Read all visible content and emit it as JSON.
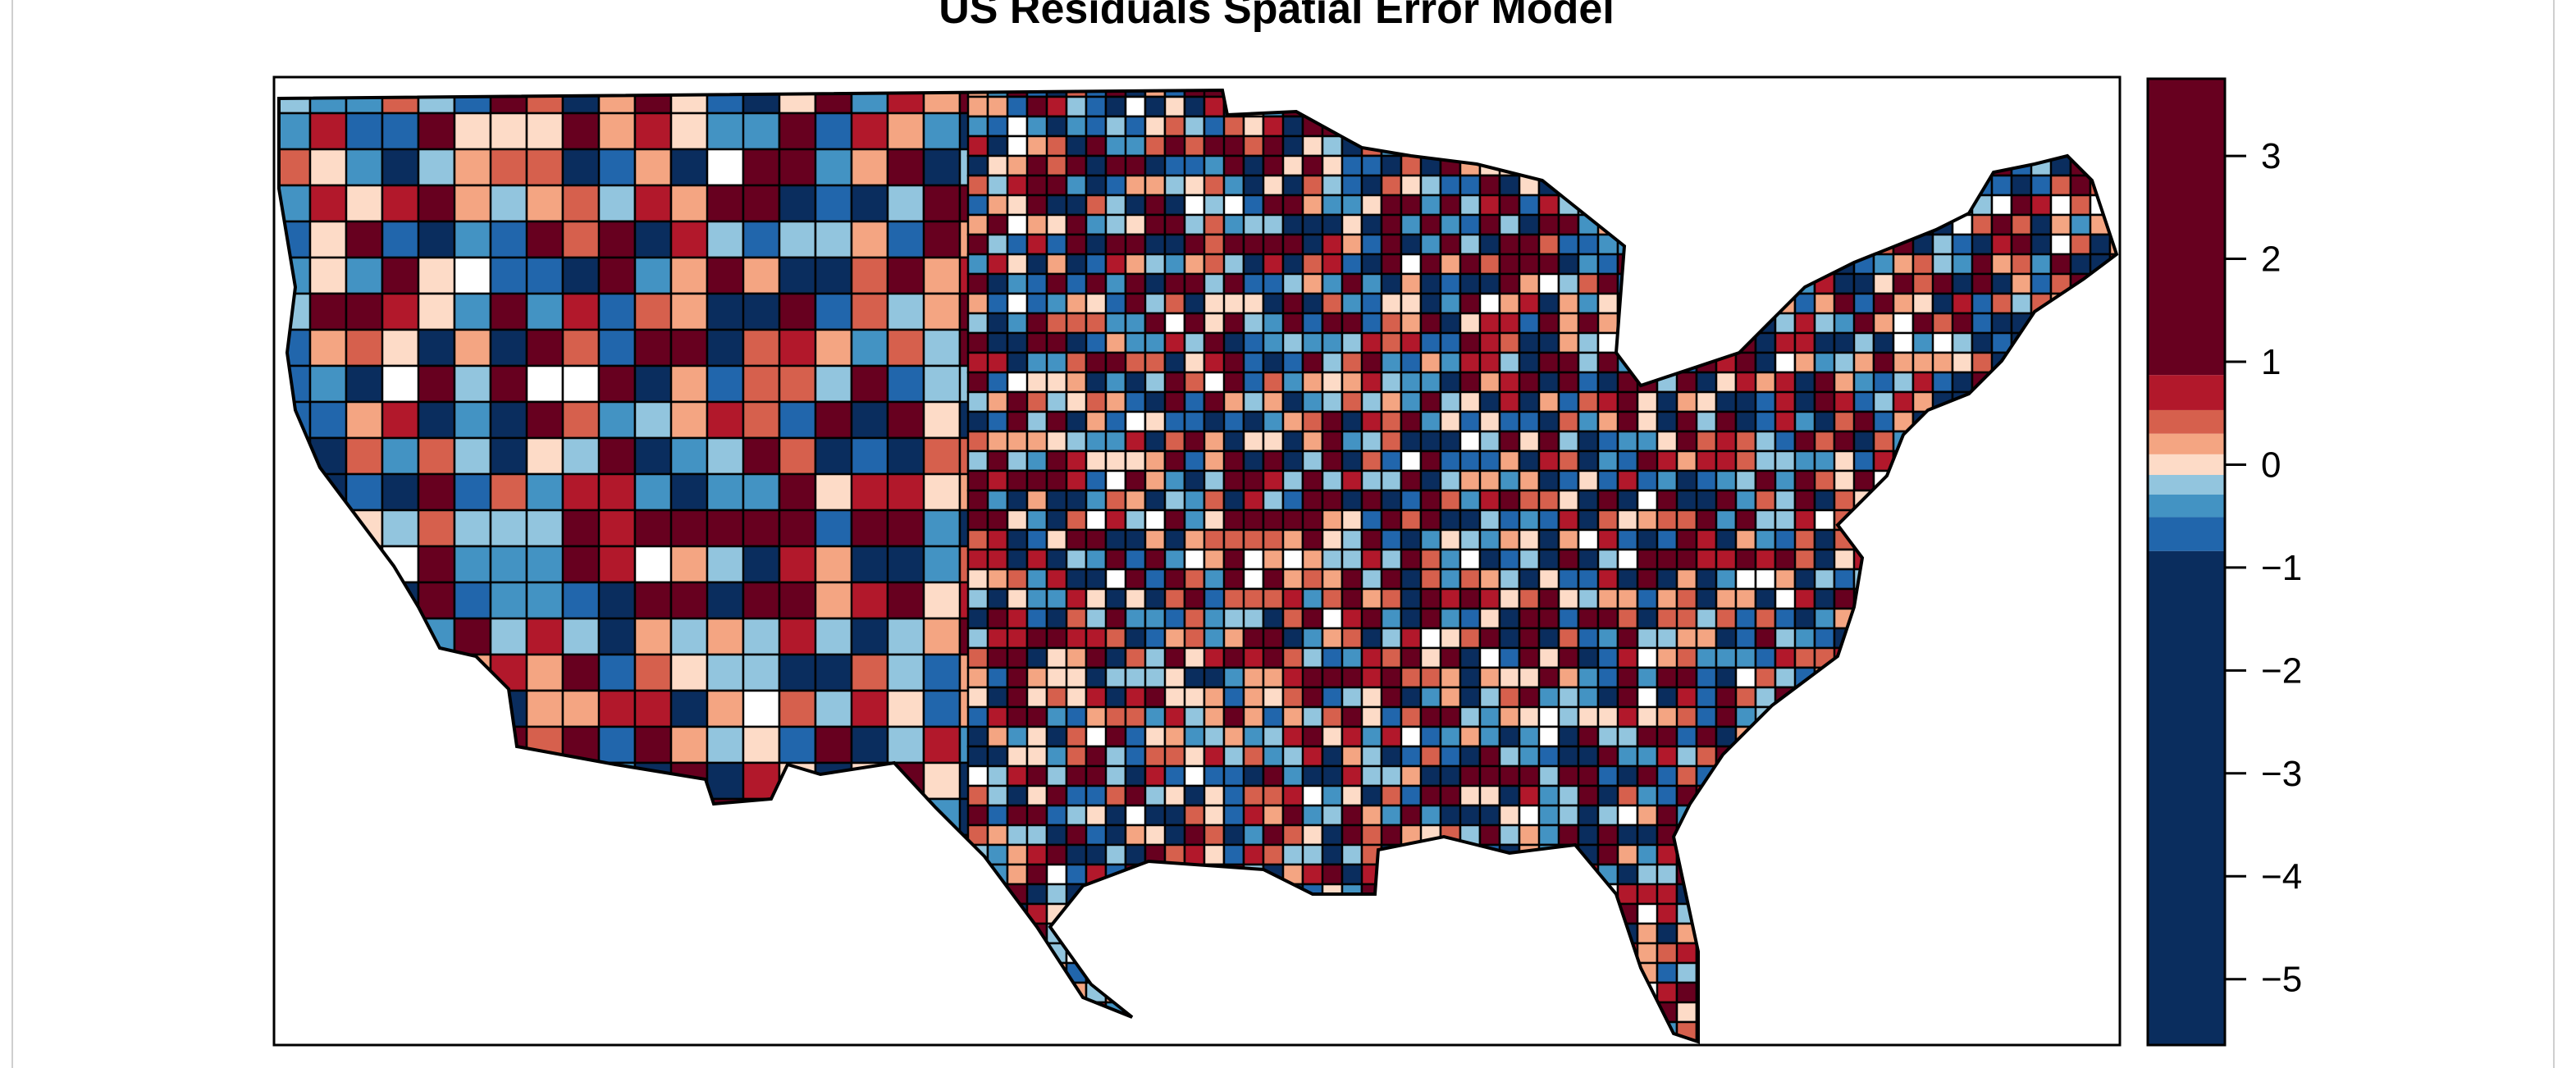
{
  "chart_data": {
    "type": "choropleth",
    "title": "US Residuals Spatial Error Model",
    "colorbar": {
      "position": "right",
      "range": [
        -5.64,
        3.75
      ],
      "ticks": [
        3,
        2,
        1,
        0,
        -1,
        -2,
        -3,
        -4,
        -5
      ],
      "tick_labels": [
        "3",
        "2",
        "1",
        "0",
        "−1",
        "−2",
        "−3",
        "−4",
        "−5"
      ],
      "bins": [
        {
          "from": 0.87,
          "to": 3.75,
          "color": "#67001f"
        },
        {
          "from": 0.53,
          "to": 0.87,
          "color": "#b2182b"
        },
        {
          "from": 0.3,
          "to": 0.53,
          "color": "#d6604d"
        },
        {
          "from": 0.1,
          "to": 0.3,
          "color": "#f4a582"
        },
        {
          "from": -0.1,
          "to": 0.1,
          "color": "#fddbc7"
        },
        {
          "from": -0.29,
          "to": -0.1,
          "color": "#92c5de"
        },
        {
          "from": -0.51,
          "to": -0.29,
          "color": "#4393c3"
        },
        {
          "from": -0.84,
          "to": -0.51,
          "color": "#2166ac"
        },
        {
          "from": -5.64,
          "to": -0.84,
          "color": "#0a2d5e"
        }
      ]
    },
    "map": {
      "region": "Contiguous United States, counties",
      "missing_color": "#ffffff",
      "border_color": "#000000"
    }
  }
}
